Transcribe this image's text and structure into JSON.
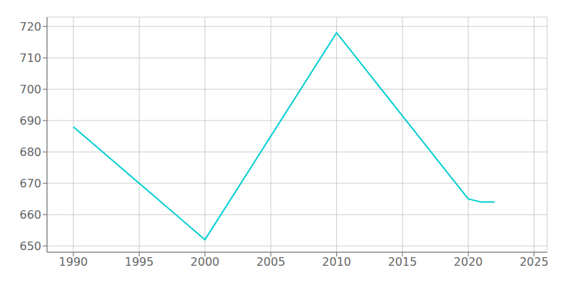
{
  "chart_data": {
    "type": "line",
    "x": [
      1990,
      2000,
      2010,
      2020,
      2021,
      2022
    ],
    "values": [
      688,
      652,
      718,
      665,
      664,
      664
    ],
    "color": "#00CED1",
    "xlim": [
      1988,
      2026
    ],
    "ylim": [
      648,
      723
    ],
    "xticks": [
      1990,
      1995,
      2000,
      2005,
      2010,
      2015,
      2020,
      2025
    ],
    "yticks": [
      650,
      660,
      670,
      680,
      690,
      700,
      710,
      720
    ],
    "grid": true
  }
}
